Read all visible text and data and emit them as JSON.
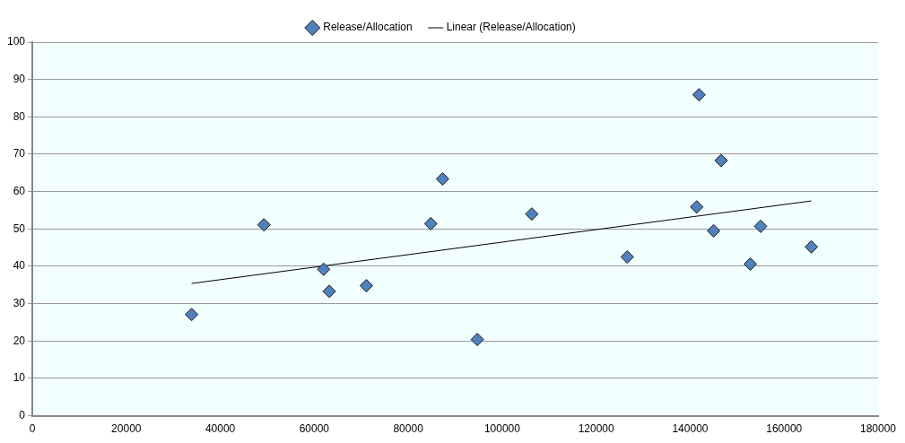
{
  "chart_data": {
    "type": "scatter",
    "series": [
      {
        "name": "Release/Allocation",
        "marker": "diamond",
        "color": "#4f81bd",
        "x": [
          33900,
          49300,
          62000,
          63200,
          71100,
          84800,
          87300,
          94700,
          106300,
          126600,
          141900,
          141400,
          145000,
          146600,
          152800,
          155000,
          165800
        ],
        "values": [
          27.1,
          51.1,
          39.2,
          33.3,
          34.8,
          51.4,
          63.4,
          20.4,
          54.0,
          42.5,
          85.9,
          55.9,
          49.5,
          68.3,
          40.6,
          50.7,
          45.2
        ]
      },
      {
        "name": "Linear (Release/Allocation)",
        "type": "line",
        "marker": "none",
        "color": "#000000",
        "x": [
          33900,
          165800
        ],
        "values": [
          35.4,
          57.5
        ]
      }
    ],
    "xlim": [
      0,
      180000
    ],
    "xticks": [
      0,
      20000,
      40000,
      60000,
      80000,
      100000,
      120000,
      140000,
      160000,
      180000
    ],
    "ylim": [
      0,
      100
    ],
    "yticks": [
      0,
      10,
      20,
      30,
      40,
      50,
      60,
      70,
      80,
      90,
      100
    ],
    "grid": "y",
    "legend": "top",
    "line_style": "solid"
  }
}
